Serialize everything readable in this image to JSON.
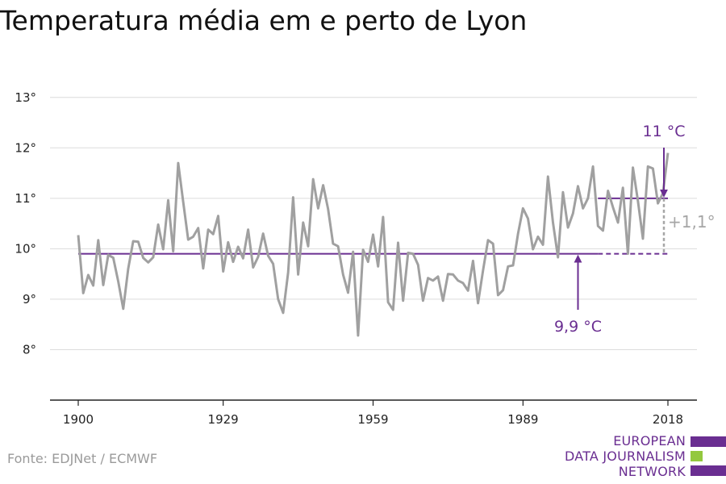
{
  "title": "Temperatura média em e perto de Lyon",
  "source": "Fonte: EDJNet / ECMWF",
  "logo": {
    "lines": [
      "EUROPEAN",
      "DATA JOURNALISM",
      "NETWORK"
    ],
    "colors": {
      "purple": "#6a2e91",
      "green": "#93c83e"
    }
  },
  "chart_data": {
    "type": "line",
    "xlim": [
      1900,
      2018
    ],
    "ylim": [
      7,
      13.3
    ],
    "x_ticks": [
      1900,
      1929,
      1959,
      1989,
      2018
    ],
    "y_ticks": [
      8,
      9,
      10,
      11,
      12,
      13
    ],
    "y_tick_labels": [
      "8°",
      "9°",
      "10°",
      "11°",
      "12°",
      "13°"
    ],
    "x_tick_labels": [
      "1900",
      "1929",
      "1959",
      "1989",
      "2018"
    ],
    "grid": true,
    "series": [
      {
        "color": "#a0a0a0",
        "x": [
          1900,
          1901,
          1902,
          1903,
          1904,
          1905,
          1906,
          1907,
          1908,
          1909,
          1910,
          1911,
          1912,
          1913,
          1914,
          1915,
          1916,
          1917,
          1918,
          1919,
          1920,
          1921,
          1922,
          1923,
          1924,
          1925,
          1926,
          1927,
          1928,
          1929,
          1930,
          1931,
          1932,
          1933,
          1934,
          1935,
          1936,
          1937,
          1938,
          1939,
          1940,
          1941,
          1942,
          1943,
          1944,
          1945,
          1946,
          1947,
          1948,
          1949,
          1950,
          1951,
          1952,
          1953,
          1954,
          1955,
          1956,
          1957,
          1958,
          1959,
          1960,
          1961,
          1962,
          1963,
          1964,
          1965,
          1966,
          1967,
          1968,
          1969,
          1970,
          1971,
          1972,
          1973,
          1974,
          1975,
          1976,
          1977,
          1978,
          1979,
          1980,
          1981,
          1982,
          1983,
          1984,
          1985,
          1986,
          1987,
          1988,
          1989,
          1990,
          1991,
          1992,
          1993,
          1994,
          1995,
          1996,
          1997,
          1998,
          1999,
          2000,
          2001,
          2002,
          2003,
          2004,
          2005,
          2006,
          2007,
          2008,
          2009,
          2010,
          2011,
          2012,
          2013,
          2014,
          2015,
          2016,
          2017,
          2018
        ],
        "values": [
          10.27,
          9.12,
          9.48,
          9.27,
          10.17,
          9.28,
          9.88,
          9.82,
          9.35,
          8.81,
          9.6,
          10.15,
          10.14,
          9.82,
          9.73,
          9.83,
          10.48,
          9.99,
          10.96,
          9.95,
          11.7,
          10.93,
          10.18,
          10.24,
          10.41,
          9.61,
          10.38,
          10.29,
          10.65,
          9.55,
          10.13,
          9.74,
          10.04,
          9.81,
          10.38,
          9.63,
          9.84,
          10.3,
          9.86,
          9.7,
          9.0,
          8.73,
          9.53,
          11.02,
          9.49,
          10.52,
          10.05,
          11.38,
          10.8,
          11.26,
          10.79,
          10.1,
          10.05,
          9.49,
          9.13,
          9.94,
          8.28,
          9.98,
          9.74,
          10.28,
          9.65,
          10.63,
          8.94,
          8.79,
          10.12,
          8.97,
          9.92,
          9.9,
          9.68,
          8.97,
          9.42,
          9.37,
          9.45,
          8.97,
          9.5,
          9.49,
          9.37,
          9.32,
          9.17,
          9.76,
          8.92,
          9.57,
          10.17,
          10.1,
          9.08,
          9.18,
          9.65,
          9.67,
          10.3,
          10.8,
          10.6,
          9.99,
          10.24,
          10.08,
          11.43,
          10.52,
          9.83,
          11.12,
          10.42,
          10.7,
          11.24,
          10.8,
          11.0,
          11.63,
          10.45,
          10.36,
          11.15,
          10.82,
          10.52,
          11.21,
          9.9,
          11.61,
          10.95,
          10.2,
          11.63,
          11.59,
          10.9,
          11.1,
          11.9
        ]
      }
    ],
    "reference_lines": [
      {
        "label": "9,9 °C",
        "value": 9.9,
        "x_start": 1900,
        "x_solid_end": 2004,
        "x_end": 2018,
        "color": "#6a2e91"
      },
      {
        "label": "11 °C",
        "value": 11.0,
        "x_start": 2004,
        "x_end": 2018,
        "color": "#6a2e91"
      }
    ],
    "difference_label": "+1,1°",
    "difference_color": "#a6a6a6"
  }
}
